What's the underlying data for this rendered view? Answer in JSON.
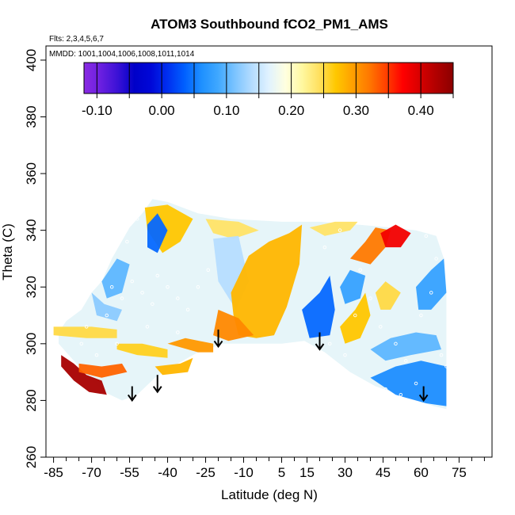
{
  "chart_data": {
    "type": "heatmap",
    "title": "ATOM3 Southbound fCO2_PM1_AMS",
    "flights_label": "Flts: 2,3,4,5,6,7",
    "dates_label": "MMDD: 1001,1004,1006,1008,1011,1014",
    "xlabel": "Latitude (deg N)",
    "ylabel": "Theta (C)",
    "xlim": [
      -88,
      88
    ],
    "ylim": [
      260,
      405
    ],
    "x_ticks": [
      -85,
      -70,
      -55,
      -40,
      -25,
      -10,
      5,
      15,
      30,
      45,
      60,
      75
    ],
    "x_tick_labels": [
      "-85",
      "-70",
      "-55",
      "-40",
      "-25",
      "-10",
      "5",
      "15",
      "30",
      "45",
      "60",
      "75"
    ],
    "y_ticks": [
      260,
      280,
      300,
      320,
      340,
      360,
      380,
      400
    ],
    "y_tick_labels": [
      "260",
      "280",
      "300",
      "320",
      "340",
      "360",
      "380",
      "400"
    ],
    "colorbar": {
      "range": [
        -0.12,
        0.45
      ],
      "tick_values": [
        -0.1,
        0.0,
        0.1,
        0.2,
        0.3,
        0.4
      ],
      "tick_labels": [
        "-0.10",
        "0.00",
        "0.10",
        "0.20",
        "0.30",
        "0.40"
      ],
      "colors": [
        "#8a2be2",
        "#6a1fe0",
        "#3b12d6",
        "#0000c8",
        "#0008d8",
        "#0030f0",
        "#0060ff",
        "#1e90ff",
        "#40a8ff",
        "#7cc4ff",
        "#b4dcff",
        "#e0f2ff",
        "#ffffe0",
        "#fff8a0",
        "#ffe060",
        "#ffc800",
        "#ffa000",
        "#ff7800",
        "#ff4000",
        "#ff0000",
        "#d80000",
        "#b00000",
        "#8b0000"
      ]
    },
    "outline": [
      [
        -83,
        304
      ],
      [
        -80,
        308
      ],
      [
        -74,
        312
      ],
      [
        -70,
        318
      ],
      [
        -66,
        322
      ],
      [
        -62,
        330
      ],
      [
        -55,
        341
      ],
      [
        -50,
        346
      ],
      [
        -46,
        351
      ],
      [
        -40,
        350
      ],
      [
        -28,
        346
      ],
      [
        -15,
        344
      ],
      [
        5,
        343
      ],
      [
        20,
        343
      ],
      [
        35,
        342
      ],
      [
        48,
        341
      ],
      [
        58,
        340
      ],
      [
        66,
        338
      ],
      [
        69,
        330
      ],
      [
        70,
        318
      ],
      [
        70,
        295
      ],
      [
        70,
        277
      ],
      [
        65,
        278
      ],
      [
        55,
        281
      ],
      [
        42,
        285
      ],
      [
        32,
        290
      ],
      [
        22,
        297
      ],
      [
        14,
        301
      ],
      [
        5,
        300
      ],
      [
        -5,
        300
      ],
      [
        -18,
        300
      ],
      [
        -28,
        297
      ],
      [
        -38,
        292
      ],
      [
        -45,
        288
      ],
      [
        -52,
        282
      ],
      [
        -58,
        280
      ],
      [
        -65,
        283
      ],
      [
        -73,
        290
      ],
      [
        -79,
        296
      ],
      [
        -83,
        300
      ]
    ],
    "color_patches": [
      {
        "pts": [
          [
            -83,
            304
          ],
          [
            -80,
            308
          ],
          [
            -74,
            312
          ],
          [
            -70,
            318
          ],
          [
            -66,
            322
          ],
          [
            -62,
            330
          ],
          [
            -55,
            341
          ],
          [
            -50,
            346
          ],
          [
            -46,
            351
          ],
          [
            -40,
            350
          ],
          [
            -28,
            346
          ],
          [
            -15,
            344
          ],
          [
            5,
            343
          ],
          [
            20,
            343
          ],
          [
            35,
            342
          ],
          [
            48,
            341
          ],
          [
            58,
            340
          ],
          [
            66,
            338
          ],
          [
            69,
            330
          ],
          [
            70,
            318
          ],
          [
            70,
            295
          ],
          [
            70,
            277
          ],
          [
            65,
            278
          ],
          [
            55,
            281
          ],
          [
            42,
            285
          ],
          [
            32,
            290
          ],
          [
            22,
            297
          ],
          [
            14,
            301
          ],
          [
            5,
            300
          ],
          [
            -5,
            300
          ],
          [
            -18,
            300
          ],
          [
            -28,
            297
          ],
          [
            -38,
            292
          ],
          [
            -45,
            288
          ],
          [
            -52,
            282
          ],
          [
            -58,
            280
          ],
          [
            -65,
            283
          ],
          [
            -73,
            290
          ],
          [
            -79,
            296
          ],
          [
            -83,
            300
          ]
        ],
        "value": 0.17
      },
      {
        "pts": [
          [
            -49,
            348
          ],
          [
            -40,
            349
          ],
          [
            -30,
            344
          ],
          [
            -35,
            336
          ],
          [
            -42,
            332
          ],
          [
            -48,
            340
          ]
        ],
        "value": 0.27
      },
      {
        "pts": [
          [
            -25,
            344
          ],
          [
            -12,
            343
          ],
          [
            -4,
            340
          ],
          [
            -14,
            337
          ],
          [
            -22,
            339
          ]
        ],
        "value": 0.24
      },
      {
        "pts": [
          [
            -22,
            337
          ],
          [
            -12,
            338
          ],
          [
            -8,
            322
          ],
          [
            -13,
            312
          ],
          [
            -20,
            322
          ]
        ],
        "value": 0.14
      },
      {
        "pts": [
          [
            -15,
            318
          ],
          [
            -8,
            331
          ],
          [
            0,
            336
          ],
          [
            8,
            339
          ],
          [
            13,
            342
          ],
          [
            12,
            328
          ],
          [
            7,
            313
          ],
          [
            2,
            303
          ],
          [
            -5,
            302
          ],
          [
            -12,
            303
          ],
          [
            -14,
            310
          ]
        ],
        "value": 0.28
      },
      {
        "pts": [
          [
            -20,
            312
          ],
          [
            -12,
            309
          ],
          [
            -6,
            303
          ],
          [
            -16,
            301
          ],
          [
            -22,
            303
          ]
        ],
        "value": 0.31
      },
      {
        "pts": [
          [
            -82,
            296
          ],
          [
            -77,
            293
          ],
          [
            -72,
            289
          ],
          [
            -66,
            287
          ],
          [
            -64,
            282
          ],
          [
            -71,
            283
          ],
          [
            -77,
            287
          ],
          [
            -82,
            292
          ]
        ],
        "value": 0.43
      },
      {
        "pts": [
          [
            -75,
            293
          ],
          [
            -66,
            292
          ],
          [
            -58,
            293
          ],
          [
            -56,
            290
          ],
          [
            -66,
            288
          ],
          [
            -75,
            290
          ]
        ],
        "value": 0.33
      },
      {
        "pts": [
          [
            -85,
            306
          ],
          [
            -70,
            306
          ],
          [
            -60,
            305
          ],
          [
            -60,
            302
          ],
          [
            -72,
            302
          ],
          [
            -85,
            303
          ]
        ],
        "value": 0.25
      },
      {
        "pts": [
          [
            -60,
            300
          ],
          [
            -50,
            300
          ],
          [
            -40,
            298
          ],
          [
            -40,
            295
          ],
          [
            -52,
            296
          ],
          [
            -60,
            298
          ]
        ],
        "value": 0.26
      },
      {
        "pts": [
          [
            -40,
            300
          ],
          [
            -28,
            297
          ],
          [
            -22,
            297
          ],
          [
            -22,
            300
          ],
          [
            -33,
            302
          ]
        ],
        "value": 0.3
      },
      {
        "pts": [
          [
            -45,
            292
          ],
          [
            -35,
            293
          ],
          [
            -30,
            295
          ],
          [
            -32,
            290
          ],
          [
            -42,
            289
          ]
        ],
        "value": 0.28
      },
      {
        "pts": [
          [
            -66,
            322
          ],
          [
            -60,
            330
          ],
          [
            -55,
            328
          ],
          [
            -58,
            318
          ],
          [
            -64,
            316
          ]
        ],
        "value": 0.1
      },
      {
        "pts": [
          [
            -70,
            318
          ],
          [
            -65,
            314
          ],
          [
            -58,
            312
          ],
          [
            -60,
            308
          ],
          [
            -68,
            310
          ]
        ],
        "value": 0.12
      },
      {
        "pts": [
          [
            -48,
            342
          ],
          [
            -44,
            346
          ],
          [
            -40,
            340
          ],
          [
            -44,
            332
          ],
          [
            -48,
            334
          ]
        ],
        "value": 0.04
      },
      {
        "pts": [
          [
            13,
            312
          ],
          [
            20,
            318
          ],
          [
            24,
            324
          ],
          [
            26,
            312
          ],
          [
            24,
            303
          ],
          [
            16,
            302
          ]
        ],
        "value": 0.04
      },
      {
        "pts": [
          [
            28,
            320
          ],
          [
            32,
            326
          ],
          [
            38,
            324
          ],
          [
            36,
            316
          ],
          [
            30,
            314
          ]
        ],
        "value": 0.08
      },
      {
        "pts": [
          [
            16,
            341
          ],
          [
            26,
            343
          ],
          [
            35,
            343
          ],
          [
            32,
            340
          ],
          [
            22,
            338
          ]
        ],
        "value": 0.24
      },
      {
        "pts": [
          [
            32,
            330
          ],
          [
            38,
            336
          ],
          [
            42,
            341
          ],
          [
            48,
            340
          ],
          [
            46,
            334
          ],
          [
            40,
            328
          ]
        ],
        "value": 0.32
      },
      {
        "pts": [
          [
            44,
            339
          ],
          [
            50,
            342
          ],
          [
            56,
            339
          ],
          [
            52,
            334
          ],
          [
            46,
            334
          ]
        ],
        "value": 0.38
      },
      {
        "pts": [
          [
            42,
            318
          ],
          [
            46,
            322
          ],
          [
            52,
            318
          ],
          [
            48,
            312
          ],
          [
            44,
            312
          ]
        ],
        "value": 0.25
      },
      {
        "pts": [
          [
            28,
            306
          ],
          [
            34,
            312
          ],
          [
            38,
            318
          ],
          [
            40,
            310
          ],
          [
            36,
            302
          ],
          [
            30,
            300
          ]
        ],
        "value": 0.27
      },
      {
        "pts": [
          [
            40,
            298
          ],
          [
            48,
            302
          ],
          [
            58,
            304
          ],
          [
            66,
            303
          ],
          [
            68,
            298
          ],
          [
            56,
            296
          ],
          [
            46,
            294
          ]
        ],
        "value": 0.1
      },
      {
        "pts": [
          [
            40,
            288
          ],
          [
            50,
            292
          ],
          [
            60,
            294
          ],
          [
            70,
            292
          ],
          [
            70,
            278
          ],
          [
            62,
            279
          ],
          [
            50,
            282
          ]
        ],
        "value": 0.06
      },
      {
        "pts": [
          [
            58,
            320
          ],
          [
            64,
            326
          ],
          [
            69,
            330
          ],
          [
            70,
            318
          ],
          [
            64,
            312
          ],
          [
            59,
            312
          ]
        ],
        "value": 0.08
      }
    ],
    "scatter_points": [
      [
        -78,
        312
      ],
      [
        -72,
        306
      ],
      [
        -64,
        310
      ],
      [
        -62,
        320
      ],
      [
        -58,
        316
      ],
      [
        -54,
        322
      ],
      [
        -50,
        318
      ],
      [
        -46,
        314
      ],
      [
        -44,
        324
      ],
      [
        -40,
        320
      ],
      [
        -36,
        316
      ],
      [
        -32,
        312
      ],
      [
        -28,
        320
      ],
      [
        -24,
        326
      ],
      [
        -56,
        336
      ],
      [
        -52,
        344
      ],
      [
        -60,
        300
      ],
      [
        -68,
        296
      ],
      [
        -74,
        300
      ],
      [
        -48,
        306
      ],
      [
        -36,
        304
      ],
      [
        22,
        334
      ],
      [
        28,
        340
      ],
      [
        36,
        326
      ],
      [
        40,
        316
      ],
      [
        44,
        306
      ],
      [
        50,
        300
      ],
      [
        54,
        294
      ],
      [
        60,
        310
      ],
      [
        64,
        318
      ],
      [
        66,
        330
      ],
      [
        68,
        296
      ],
      [
        70,
        292
      ],
      [
        46,
        284
      ],
      [
        52,
        282
      ],
      [
        58,
        286
      ],
      [
        30,
        296
      ],
      [
        24,
        300
      ],
      [
        34,
        310
      ],
      [
        62,
        338
      ]
    ],
    "arrows": [
      {
        "lat": -54,
        "theta_start": 285,
        "theta_end": 280
      },
      {
        "lat": -44,
        "theta_start": 289,
        "theta_end": 283
      },
      {
        "lat": -20,
        "theta_start": 305,
        "theta_end": 299
      },
      {
        "lat": 20,
        "theta_start": 304,
        "theta_end": 298
      },
      {
        "lat": 61,
        "theta_start": 285,
        "theta_end": 280
      }
    ]
  }
}
